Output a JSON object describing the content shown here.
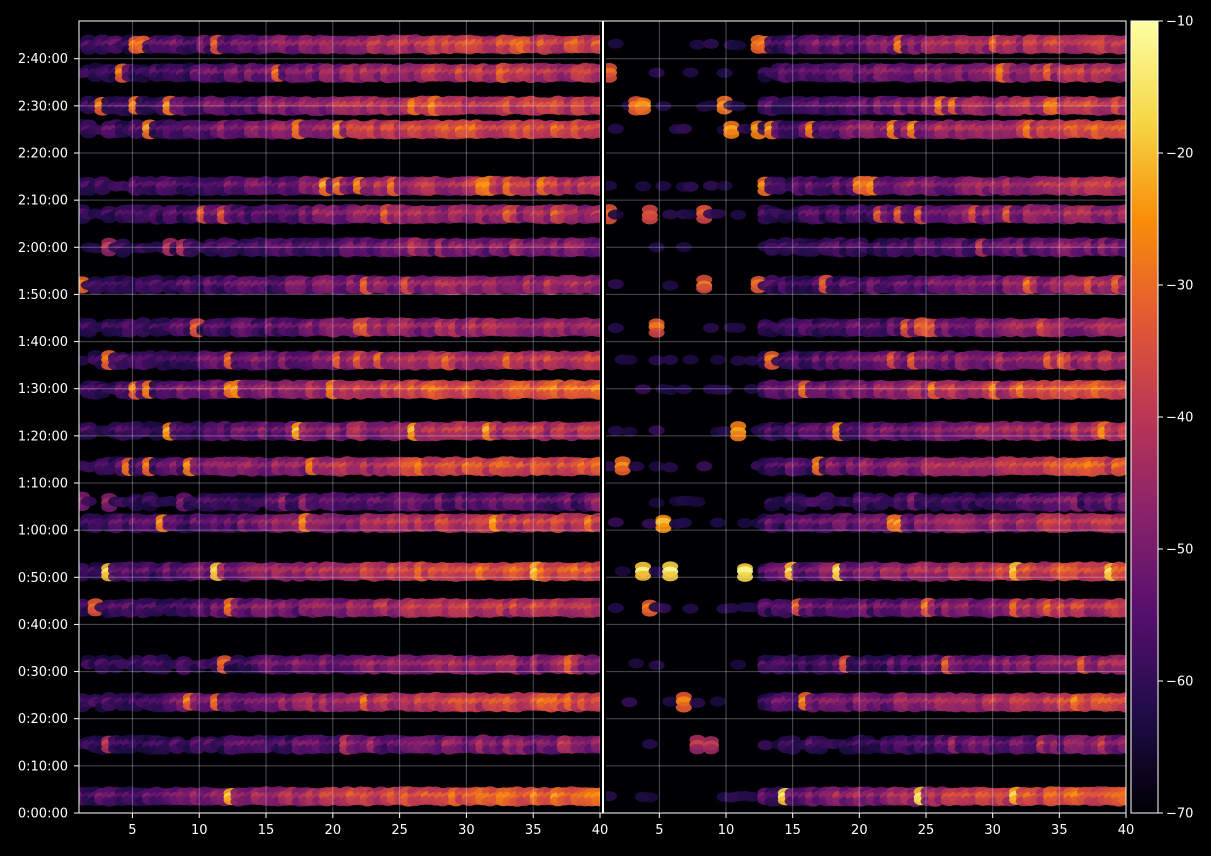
{
  "chart_data": {
    "type": "heatmap",
    "title": "",
    "colormap": "inferno",
    "background": "#000000",
    "grid": true,
    "colorbar": {
      "min": -70,
      "max": -10,
      "ticks": [
        -10,
        -20,
        -30,
        -40,
        -50,
        -60,
        -70
      ],
      "tick_labels": [
        "−10",
        "−20",
        "−30",
        "−40",
        "−50",
        "−60",
        "−70"
      ]
    },
    "y": {
      "range_seconds": [
        0,
        10080
      ],
      "ticks_seconds": [
        0,
        600,
        1200,
        1800,
        2400,
        3000,
        3600,
        4200,
        4800,
        5400,
        6000,
        6600,
        7200,
        7800,
        8400,
        9000,
        9600
      ],
      "tick_labels": [
        "0:00:00",
        "0:10:00",
        "0:20:00",
        "0:30:00",
        "0:40:00",
        "0:50:00",
        "1:00:00",
        "1:10:00",
        "1:20:00",
        "1:30:00",
        "1:40:00",
        "1:50:00",
        "2:00:00",
        "2:10:00",
        "2:20:00",
        "2:30:00",
        "2:40:00"
      ]
    },
    "panels": [
      {
        "name": "left",
        "xlim": [
          1,
          40
        ],
        "x_ticks": [
          5,
          10,
          15,
          20,
          25,
          30,
          35,
          40
        ],
        "x_tick_labels": [
          "5",
          "10",
          "15",
          "20",
          "25",
          "30",
          "35",
          "40"
        ]
      },
      {
        "name": "right",
        "xlim": [
          1,
          40
        ],
        "x_ticks": [
          5,
          10,
          15,
          20,
          25,
          30,
          35,
          40
        ],
        "x_tick_labels": [
          "5",
          "10",
          "15",
          "20",
          "25",
          "30",
          "35",
          "40"
        ]
      }
    ],
    "bands": [
      {
        "t_min": 3.5,
        "level": -28,
        "peak": -14
      },
      {
        "t_min": 14.5,
        "level": -46,
        "peak": -38
      },
      {
        "t_min": 23.5,
        "level": -33,
        "peak": -26
      },
      {
        "t_min": 31.5,
        "level": -42,
        "peak": -29
      },
      {
        "t_min": 43.5,
        "level": -37,
        "peak": -27
      },
      {
        "t_min": 51.2,
        "level": -30,
        "peak": -14
      },
      {
        "t_min": 61.5,
        "level": -36,
        "peak": -22
      },
      {
        "t_min": 66.0,
        "level": -50,
        "peak": -44
      },
      {
        "t_min": 73.5,
        "level": -32,
        "peak": -25
      },
      {
        "t_min": 81.0,
        "level": -38,
        "peak": -20
      },
      {
        "t_min": 89.8,
        "level": -30,
        "peak": -24
      },
      {
        "t_min": 96.0,
        "level": -38,
        "peak": -28
      },
      {
        "t_min": 103.0,
        "level": -40,
        "peak": -30
      },
      {
        "t_min": 112.0,
        "level": -41,
        "peak": -28
      },
      {
        "t_min": 120.0,
        "level": -46,
        "peak": -38
      },
      {
        "t_min": 127.0,
        "level": -40,
        "peak": -30
      },
      {
        "t_min": 133.0,
        "level": -38,
        "peak": -24
      },
      {
        "t_min": 145.0,
        "level": -32,
        "peak": -23
      },
      {
        "t_min": 150.0,
        "level": -35,
        "peak": -25
      },
      {
        "t_min": 157.0,
        "level": -37,
        "peak": -26
      },
      {
        "t_min": 163.0,
        "level": -34,
        "peak": -26
      }
    ]
  }
}
